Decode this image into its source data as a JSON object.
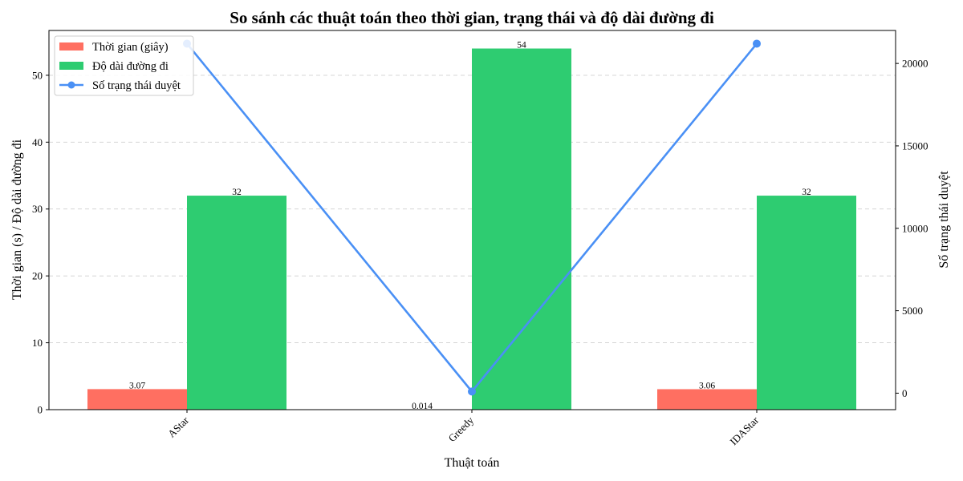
{
  "chart_data": {
    "type": "bar",
    "title": "So sánh các thuật toán theo thời gian, trạng thái và độ dài đường đi",
    "xlabel": "Thuật toán",
    "ylabel": "Thời gian (s) / Độ dài đường đi",
    "ylabel_right": "Số trạng thái duyệt",
    "categories": [
      "AStar",
      "Greedy",
      "IDAStar"
    ],
    "series": [
      {
        "name": "Thời gian (giây)",
        "kind": "bar",
        "axis": "left",
        "color": "#ff6f61",
        "values": [
          3.07,
          0.014,
          3.06
        ],
        "labels": [
          "3.07",
          "0.014",
          "3.06"
        ]
      },
      {
        "name": "Độ dài đường đi",
        "kind": "bar",
        "axis": "left",
        "color": "#2ecc71",
        "values": [
          32,
          54,
          32
        ],
        "labels": [
          "32",
          "54",
          "32"
        ]
      },
      {
        "name": "Số trạng thái duyệt",
        "kind": "line",
        "axis": "right",
        "color": "#4a90f5",
        "values": [
          21200,
          100,
          21200
        ]
      }
    ],
    "ylim": [
      0,
      56.7
    ],
    "ylim_right": [
      -1000,
      22000
    ],
    "yticks": [
      0,
      10,
      20,
      30,
      40,
      50
    ],
    "yticks_right": [
      0,
      5000,
      10000,
      15000,
      20000
    ],
    "grid": true,
    "legend_position": "top-left"
  }
}
